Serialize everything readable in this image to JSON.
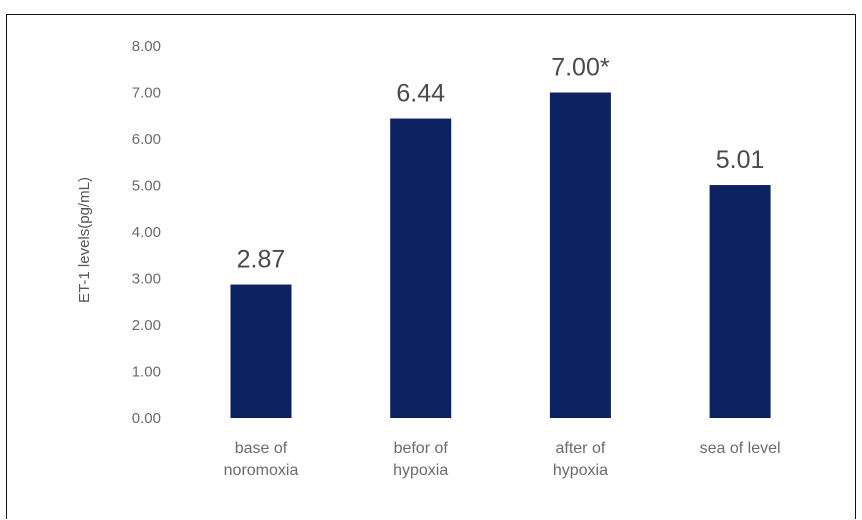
{
  "chart_data": {
    "type": "bar",
    "categories": [
      [
        "base of",
        "noromoxia"
      ],
      [
        "befor of",
        "hypoxia"
      ],
      [
        "after of",
        "hypoxia"
      ],
      [
        "sea of level"
      ]
    ],
    "values": [
      2.87,
      6.44,
      7.0,
      5.01
    ],
    "data_labels": [
      "2.87",
      "6.44",
      "7.00*",
      "5.01"
    ],
    "y_ticks": [
      "0.00",
      "1.00",
      "2.00",
      "3.00",
      "4.00",
      "5.00",
      "6.00",
      "7.00",
      "8.00"
    ],
    "ylim": [
      0,
      8
    ],
    "ylabel": "ET-1 levels(pg/mL)",
    "xlabel": "",
    "title": "",
    "grid": false,
    "legend": "none",
    "bar_color": "#0d2260"
  }
}
